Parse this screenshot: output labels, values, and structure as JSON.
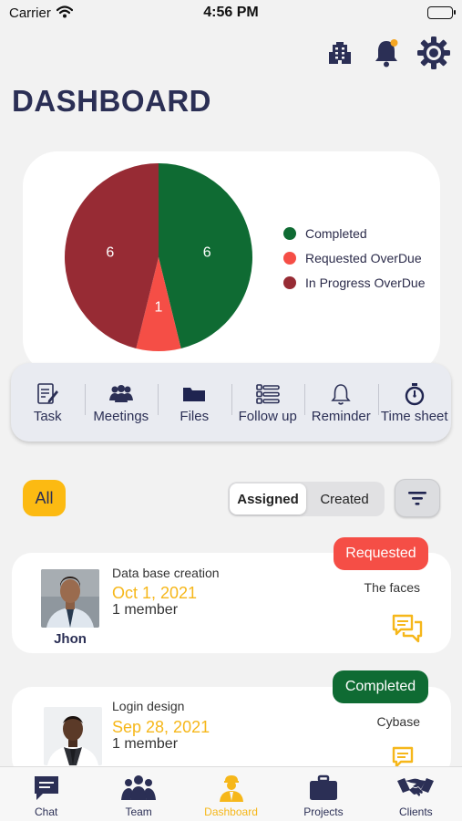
{
  "status_bar": {
    "carrier": "Carrier",
    "time": "4:56 PM"
  },
  "header": {
    "title": "DASHBOARD",
    "icons": [
      "building-icon",
      "bell-icon",
      "gear-icon"
    ],
    "notification_dot_color": "#f5a623"
  },
  "chart_data": {
    "type": "pie",
    "categories": [
      "Completed",
      "Requested OverDue",
      "In Progress OverDue"
    ],
    "values": [
      6,
      1,
      6
    ],
    "colors": [
      "#0f6b33",
      "#f54e46",
      "#972b34"
    ],
    "legend_position": "right"
  },
  "quick_actions": [
    {
      "label": "Task",
      "icon": "task-icon"
    },
    {
      "label": "Meetings",
      "icon": "meetings-icon"
    },
    {
      "label": "Files",
      "icon": "folder-icon"
    },
    {
      "label": "Follow up",
      "icon": "follow-up-icon"
    },
    {
      "label": "Reminder",
      "icon": "bell-outline-icon"
    },
    {
      "label": "Time sheet",
      "icon": "stopwatch-icon"
    }
  ],
  "filters": {
    "all_label": "All",
    "segments": [
      "Assigned",
      "Created"
    ],
    "active_segment": "Assigned"
  },
  "tasks": [
    {
      "status": "Requested",
      "status_color": "#f54e46",
      "title": "Data base creation",
      "date": "Oct 1, 2021",
      "members": "1 member",
      "client": "The faces",
      "assignee": "Jhon"
    },
    {
      "status": "Completed",
      "status_color": "#0f6b33",
      "title": "Login design",
      "date": "Sep 28, 2021",
      "members": "1 member",
      "client": "Cybase",
      "assignee": ""
    }
  ],
  "tab_bar": {
    "tabs": [
      {
        "label": "Chat",
        "icon": "chat-icon"
      },
      {
        "label": "Team",
        "icon": "team-icon"
      },
      {
        "label": "Dashboard",
        "icon": "dashboard-icon"
      },
      {
        "label": "Projects",
        "icon": "briefcase-icon"
      },
      {
        "label": "Clients",
        "icon": "handshake-icon"
      }
    ],
    "active": "Dashboard",
    "active_color": "#f6b71a"
  }
}
